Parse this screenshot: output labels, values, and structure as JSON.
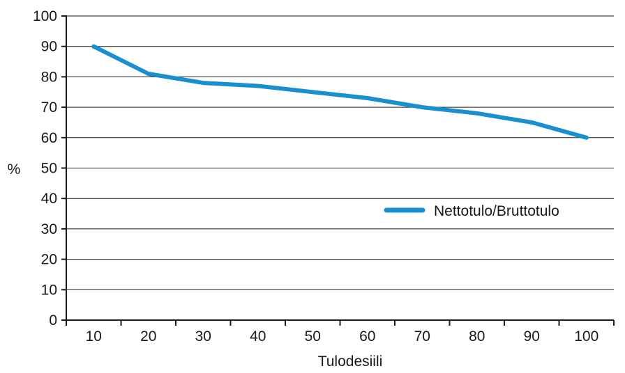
{
  "chart_data": {
    "type": "line",
    "title": "",
    "xlabel": "Tulodesiili",
    "ylabel": "%",
    "categories": [
      "10",
      "20",
      "30",
      "40",
      "50",
      "60",
      "70",
      "80",
      "90",
      "100"
    ],
    "series": [
      {
        "name": "Nettotulo/Bruttotulo",
        "color": "#1a8fd0",
        "values": [
          90,
          81,
          78,
          77,
          75,
          73,
          70,
          68,
          65,
          60
        ]
      }
    ],
    "ylim": [
      0,
      100
    ],
    "yticks": [
      "0",
      "10",
      "20",
      "30",
      "40",
      "50",
      "60",
      "70",
      "80",
      "90",
      "100"
    ],
    "grid": "horizontal",
    "legend_position": "center-right"
  }
}
